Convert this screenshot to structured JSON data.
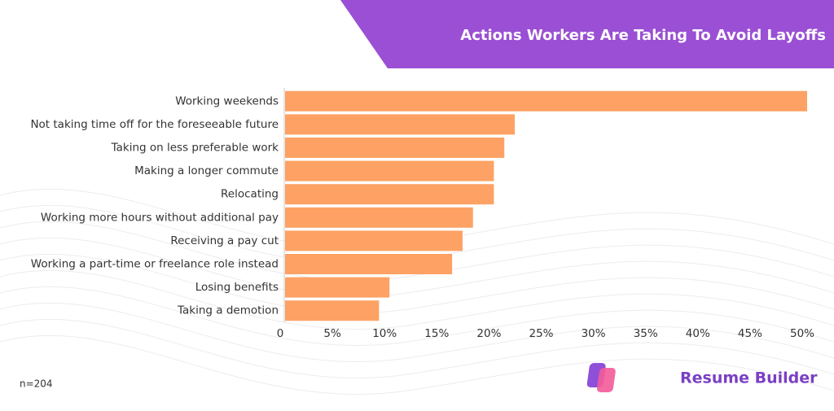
{
  "chart_data": {
    "type": "barh",
    "title": "Actions Workers Are Taking To Avoid Layoffs",
    "categories": [
      "Working weekends",
      "Not taking time off for the foreseeable future",
      "Taking on less preferable work",
      "Making a longer commute",
      "Relocating",
      "Working more hours without additional pay",
      "Receiving a pay cut",
      "Working a part-time or freelance role instead",
      "Losing benefits",
      "Taking a demotion"
    ],
    "values": [
      50,
      22,
      21,
      20,
      20,
      18,
      17,
      16,
      10,
      9
    ],
    "color": "#fda264",
    "xlim": [
      0,
      50
    ],
    "xticks": [
      0,
      {
        "value": 5,
        "label": "5%"
      },
      {
        "value": 10,
        "label": "10%"
      },
      {
        "value": 15,
        "label": "15%"
      },
      {
        "value": 20,
        "label": "20%"
      },
      {
        "value": 25,
        "label": "25%"
      },
      {
        "value": 30,
        "label": "30%"
      },
      {
        "value": 35,
        "label": "35%"
      },
      {
        "value": 40,
        "label": "40%"
      },
      {
        "value": 45,
        "label": "45%"
      },
      {
        "value": 50,
        "label": "50%"
      }
    ],
    "grid": false
  },
  "footnote": "n=204",
  "brand": "Resume Builder"
}
